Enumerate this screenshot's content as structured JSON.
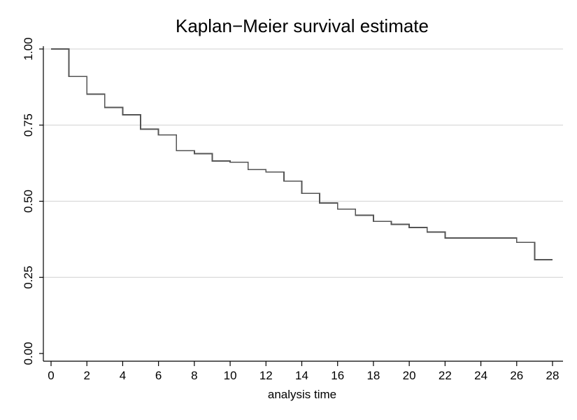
{
  "chart_data": {
    "type": "line",
    "step": true,
    "title": "Kaplan−Meier survival estimate",
    "xlabel": "analysis time",
    "ylabel": "",
    "xlim": [
      0,
      28
    ],
    "ylim": [
      0,
      1
    ],
    "x_ticks": [
      "0",
      "2",
      "4",
      "6",
      "8",
      "10",
      "12",
      "14",
      "16",
      "18",
      "20",
      "22",
      "24",
      "26",
      "28"
    ],
    "y_ticks": [
      "0.00",
      "0.25",
      "0.50",
      "0.75",
      "1.00"
    ],
    "grid": "horizontal",
    "colors": {
      "line": "#555555",
      "grid": "#d9d9d9",
      "axis": "#000000"
    },
    "series": [
      {
        "x": [
          0,
          1,
          2,
          3,
          4,
          5,
          6,
          7,
          8,
          9,
          10,
          11,
          12,
          13,
          14,
          15,
          16,
          17,
          18,
          19,
          20,
          21,
          22,
          26,
          27,
          28
        ],
        "y": [
          1.0,
          0.91,
          0.852,
          0.808,
          0.784,
          0.737,
          0.718,
          0.666,
          0.656,
          0.632,
          0.628,
          0.604,
          0.596,
          0.566,
          0.526,
          0.494,
          0.474,
          0.454,
          0.434,
          0.424,
          0.414,
          0.399,
          0.379,
          0.365,
          0.308,
          0.308
        ]
      }
    ]
  }
}
